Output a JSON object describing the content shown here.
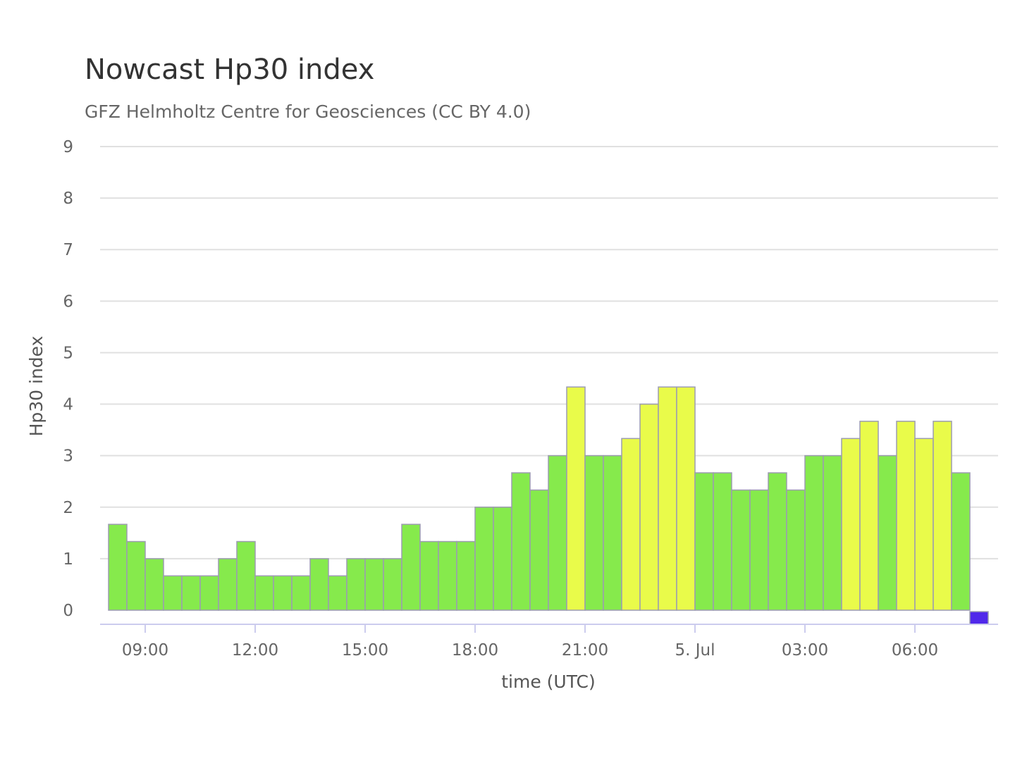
{
  "header": {
    "title": "Nowcast Hp30 index",
    "subtitle": "GFZ Helmholtz Centre for Geosciences (CC BY 4.0)"
  },
  "colors": {
    "low": "#86ea4c",
    "elevated": "#e9fb4a",
    "current": "#5028ea",
    "grid": "#e0e0e0",
    "axis": "#ccccee"
  },
  "chart_data": {
    "type": "bar",
    "xlabel": "time (UTC)",
    "ylabel": "Hp30 index",
    "ylim": [
      0,
      9
    ],
    "yticks": [
      "0",
      "1",
      "2",
      "3",
      "4",
      "5",
      "6",
      "7",
      "8",
      "9"
    ],
    "grid": true,
    "legend": "none",
    "xticks": [
      {
        "hour": 9,
        "label": "09:00"
      },
      {
        "hour": 12,
        "label": "12:00"
      },
      {
        "hour": 15,
        "label": "15:00"
      },
      {
        "hour": 18,
        "label": "18:00"
      },
      {
        "hour": 21,
        "label": "21:00"
      },
      {
        "hour": 24,
        "label": "5. Jul"
      },
      {
        "hour": 27,
        "label": "03:00"
      },
      {
        "hour": 30,
        "label": "06:00"
      }
    ],
    "x_start_hour": 8,
    "interval_hours": 0.5,
    "values": [
      1.667,
      1.333,
      1.0,
      0.667,
      0.667,
      0.667,
      1.0,
      1.333,
      0.667,
      0.667,
      0.667,
      1.0,
      0.667,
      1.0,
      1.0,
      1.0,
      1.667,
      1.333,
      1.333,
      1.333,
      2.0,
      2.0,
      2.667,
      2.333,
      3.0,
      4.333,
      3.0,
      3.0,
      3.333,
      4.0,
      4.333,
      4.333,
      2.667,
      2.667,
      2.333,
      2.333,
      2.667,
      2.333,
      3.0,
      3.0,
      3.333,
      3.667,
      3.0,
      3.667,
      3.333,
      3.667,
      2.667,
      0.0
    ]
  }
}
